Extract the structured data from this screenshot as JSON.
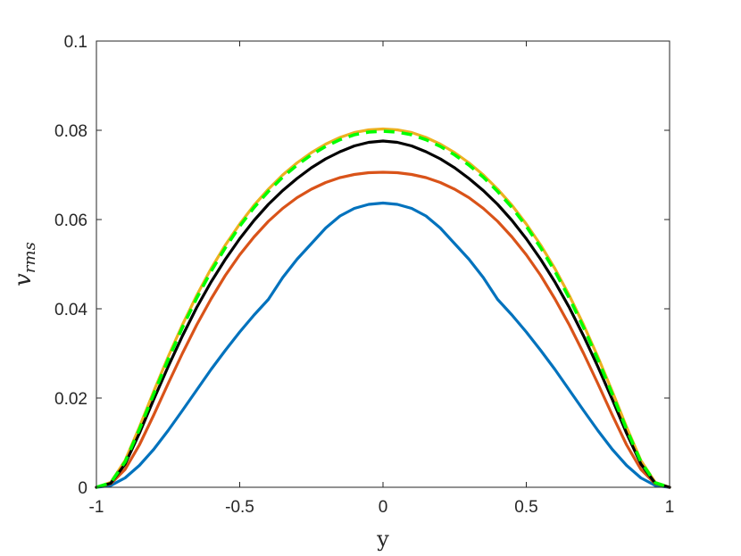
{
  "chart_data": {
    "type": "line",
    "xlabel": "y",
    "ylabel_base": "v",
    "ylabel_sub": "rms",
    "xlim": [
      -1,
      1
    ],
    "ylim": [
      0,
      0.1
    ],
    "xticks": [
      -1,
      -0.5,
      0,
      0.5,
      1
    ],
    "xtick_labels": [
      "-1",
      "-0.5",
      "0",
      "0.5",
      "1"
    ],
    "yticks": [
      0,
      0.02,
      0.04,
      0.06,
      0.08,
      0.1
    ],
    "ytick_labels": [
      "0",
      "0.02",
      "0.04",
      "0.06",
      "0.08",
      "0.1"
    ],
    "grid": false,
    "legend": "none",
    "x": [
      -1,
      -0.95,
      -0.9,
      -0.85,
      -0.8,
      -0.75,
      -0.7,
      -0.65,
      -0.6,
      -0.55,
      -0.5,
      -0.45,
      -0.4,
      -0.35,
      -0.3,
      -0.25,
      -0.2,
      -0.15,
      -0.1,
      -0.05,
      0,
      0.05,
      0.1,
      0.15,
      0.2,
      0.25,
      0.3,
      0.35,
      0.4,
      0.45,
      0.5,
      0.55,
      0.6,
      0.65,
      0.7,
      0.75,
      0.8,
      0.85,
      0.9,
      0.95,
      1
    ],
    "series": [
      {
        "color": "#0072BD",
        "style": "solid",
        "values": [
          0,
          0.0004,
          0.0021,
          0.0049,
          0.0085,
          0.0127,
          0.0172,
          0.0218,
          0.0264,
          0.0307,
          0.0348,
          0.0386,
          0.0421,
          0.047,
          0.0511,
          0.0546,
          0.0581,
          0.0608,
          0.0625,
          0.0634,
          0.0637,
          0.0634,
          0.0625,
          0.0608,
          0.0581,
          0.0546,
          0.0511,
          0.047,
          0.0421,
          0.0386,
          0.0348,
          0.0307,
          0.0264,
          0.0218,
          0.0172,
          0.0127,
          0.0085,
          0.0049,
          0.0021,
          0.0004,
          0
        ]
      },
      {
        "color": "#D95319",
        "style": "solid",
        "values": [
          0,
          0.0008,
          0.004,
          0.0095,
          0.0162,
          0.0232,
          0.03,
          0.0364,
          0.0422,
          0.0475,
          0.0521,
          0.0561,
          0.0596,
          0.0625,
          0.0649,
          0.0668,
          0.0683,
          0.0694,
          0.0701,
          0.0705,
          0.0706,
          0.0705,
          0.0701,
          0.0694,
          0.0683,
          0.0668,
          0.0649,
          0.0625,
          0.0596,
          0.0561,
          0.0521,
          0.0475,
          0.0422,
          0.0364,
          0.03,
          0.0232,
          0.0162,
          0.0095,
          0.004,
          0.0008,
          0
        ]
      },
      {
        "color": "#EDB120",
        "style": "solid",
        "values": [
          0,
          0.0011,
          0.006,
          0.0135,
          0.0215,
          0.0292,
          0.0364,
          0.043,
          0.049,
          0.0543,
          0.059,
          0.0632,
          0.0668,
          0.07,
          0.0727,
          0.075,
          0.0769,
          0.0784,
          0.0795,
          0.0801,
          0.0803,
          0.0801,
          0.0795,
          0.0784,
          0.0769,
          0.075,
          0.0727,
          0.07,
          0.0668,
          0.0632,
          0.059,
          0.0543,
          0.049,
          0.043,
          0.0364,
          0.0292,
          0.0215,
          0.0135,
          0.006,
          0.0011,
          0
        ]
      },
      {
        "color": "#000000",
        "style": "solid",
        "values": [
          0,
          0.0009,
          0.0052,
          0.0121,
          0.0197,
          0.027,
          0.0339,
          0.0403,
          0.046,
          0.0511,
          0.0557,
          0.0598,
          0.0634,
          0.0665,
          0.0692,
          0.0716,
          0.0736,
          0.0752,
          0.0765,
          0.0773,
          0.0776,
          0.0773,
          0.0765,
          0.0752,
          0.0736,
          0.0716,
          0.0692,
          0.0665,
          0.0634,
          0.0598,
          0.0557,
          0.0511,
          0.046,
          0.0403,
          0.0339,
          0.027,
          0.0197,
          0.0121,
          0.0052,
          0.0009,
          0
        ]
      },
      {
        "color": "#00FF00",
        "style": "dashed",
        "values": [
          0,
          0.001,
          0.0057,
          0.013,
          0.0209,
          0.0286,
          0.0358,
          0.0424,
          0.0484,
          0.0537,
          0.0585,
          0.0627,
          0.0663,
          0.0695,
          0.0722,
          0.0745,
          0.0764,
          0.0779,
          0.079,
          0.0796,
          0.0798,
          0.0796,
          0.079,
          0.0779,
          0.0764,
          0.0745,
          0.0722,
          0.0695,
          0.0663,
          0.0627,
          0.0585,
          0.0537,
          0.0484,
          0.0424,
          0.0358,
          0.0286,
          0.0209,
          0.013,
          0.0057,
          0.001,
          0
        ]
      }
    ]
  }
}
